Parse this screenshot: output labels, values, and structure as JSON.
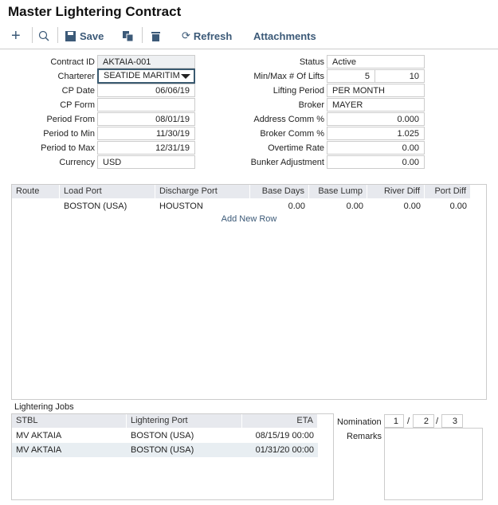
{
  "title": "Master Lightering Contract",
  "toolbar": {
    "save": "Save",
    "refresh": "Refresh",
    "attachments": "Attachments"
  },
  "form_left": [
    {
      "label": "Contract ID",
      "value": "AKTAIA-001"
    },
    {
      "label": "Charterer",
      "value": "SEATIDE MARITIM"
    },
    {
      "label": "CP Date",
      "value": "06/06/19"
    },
    {
      "label": "CP Form",
      "value": ""
    },
    {
      "label": "Period From",
      "value": "08/01/19"
    },
    {
      "label": "Period to Min",
      "value": "11/30/19"
    },
    {
      "label": "Period to Max",
      "value": "12/31/19"
    },
    {
      "label": "Currency",
      "value": "USD"
    }
  ],
  "form_right": {
    "status": {
      "label": "Status",
      "value": "Active"
    },
    "lifts": {
      "label": "Min/Max # Of Lifts",
      "min": "5",
      "max": "10"
    },
    "lifting_period": {
      "label": "Lifting Period",
      "value": "PER MONTH"
    },
    "broker": {
      "label": "Broker",
      "value": "MAYER"
    },
    "address_comm": {
      "label": "Address Comm %",
      "value": "0.000"
    },
    "broker_comm": {
      "label": "Broker Comm %",
      "value": "1.025"
    },
    "overtime": {
      "label": "Overtime Rate",
      "value": "0.00"
    },
    "bunker": {
      "label": "Bunker Adjustment",
      "value": "0.00"
    }
  },
  "routes": {
    "columns": [
      "Route",
      "Load Port",
      "Discharge Port",
      "Base Days",
      "Base Lump",
      "River Diff",
      "Port Diff"
    ],
    "rows": [
      [
        "",
        "BOSTON (USA)",
        "HOUSTON",
        "0.00",
        "0.00",
        "0.00",
        "0.00"
      ]
    ],
    "add_row": "Add New Row"
  },
  "jobs": {
    "label": "Lightering Jobs",
    "columns": [
      "STBL",
      "Lightering Port",
      "ETA"
    ],
    "rows": [
      [
        "MV AKTAIA",
        "BOSTON (USA)",
        "08/15/19 00:00"
      ],
      [
        "MV AKTAIA",
        "BOSTON (USA)",
        "01/31/20 00:00"
      ]
    ]
  },
  "nomination": {
    "label": "Nomination",
    "values": [
      "1",
      "2",
      "3"
    ],
    "sep": "/"
  },
  "remarks": {
    "label": "Remarks",
    "value": ""
  }
}
